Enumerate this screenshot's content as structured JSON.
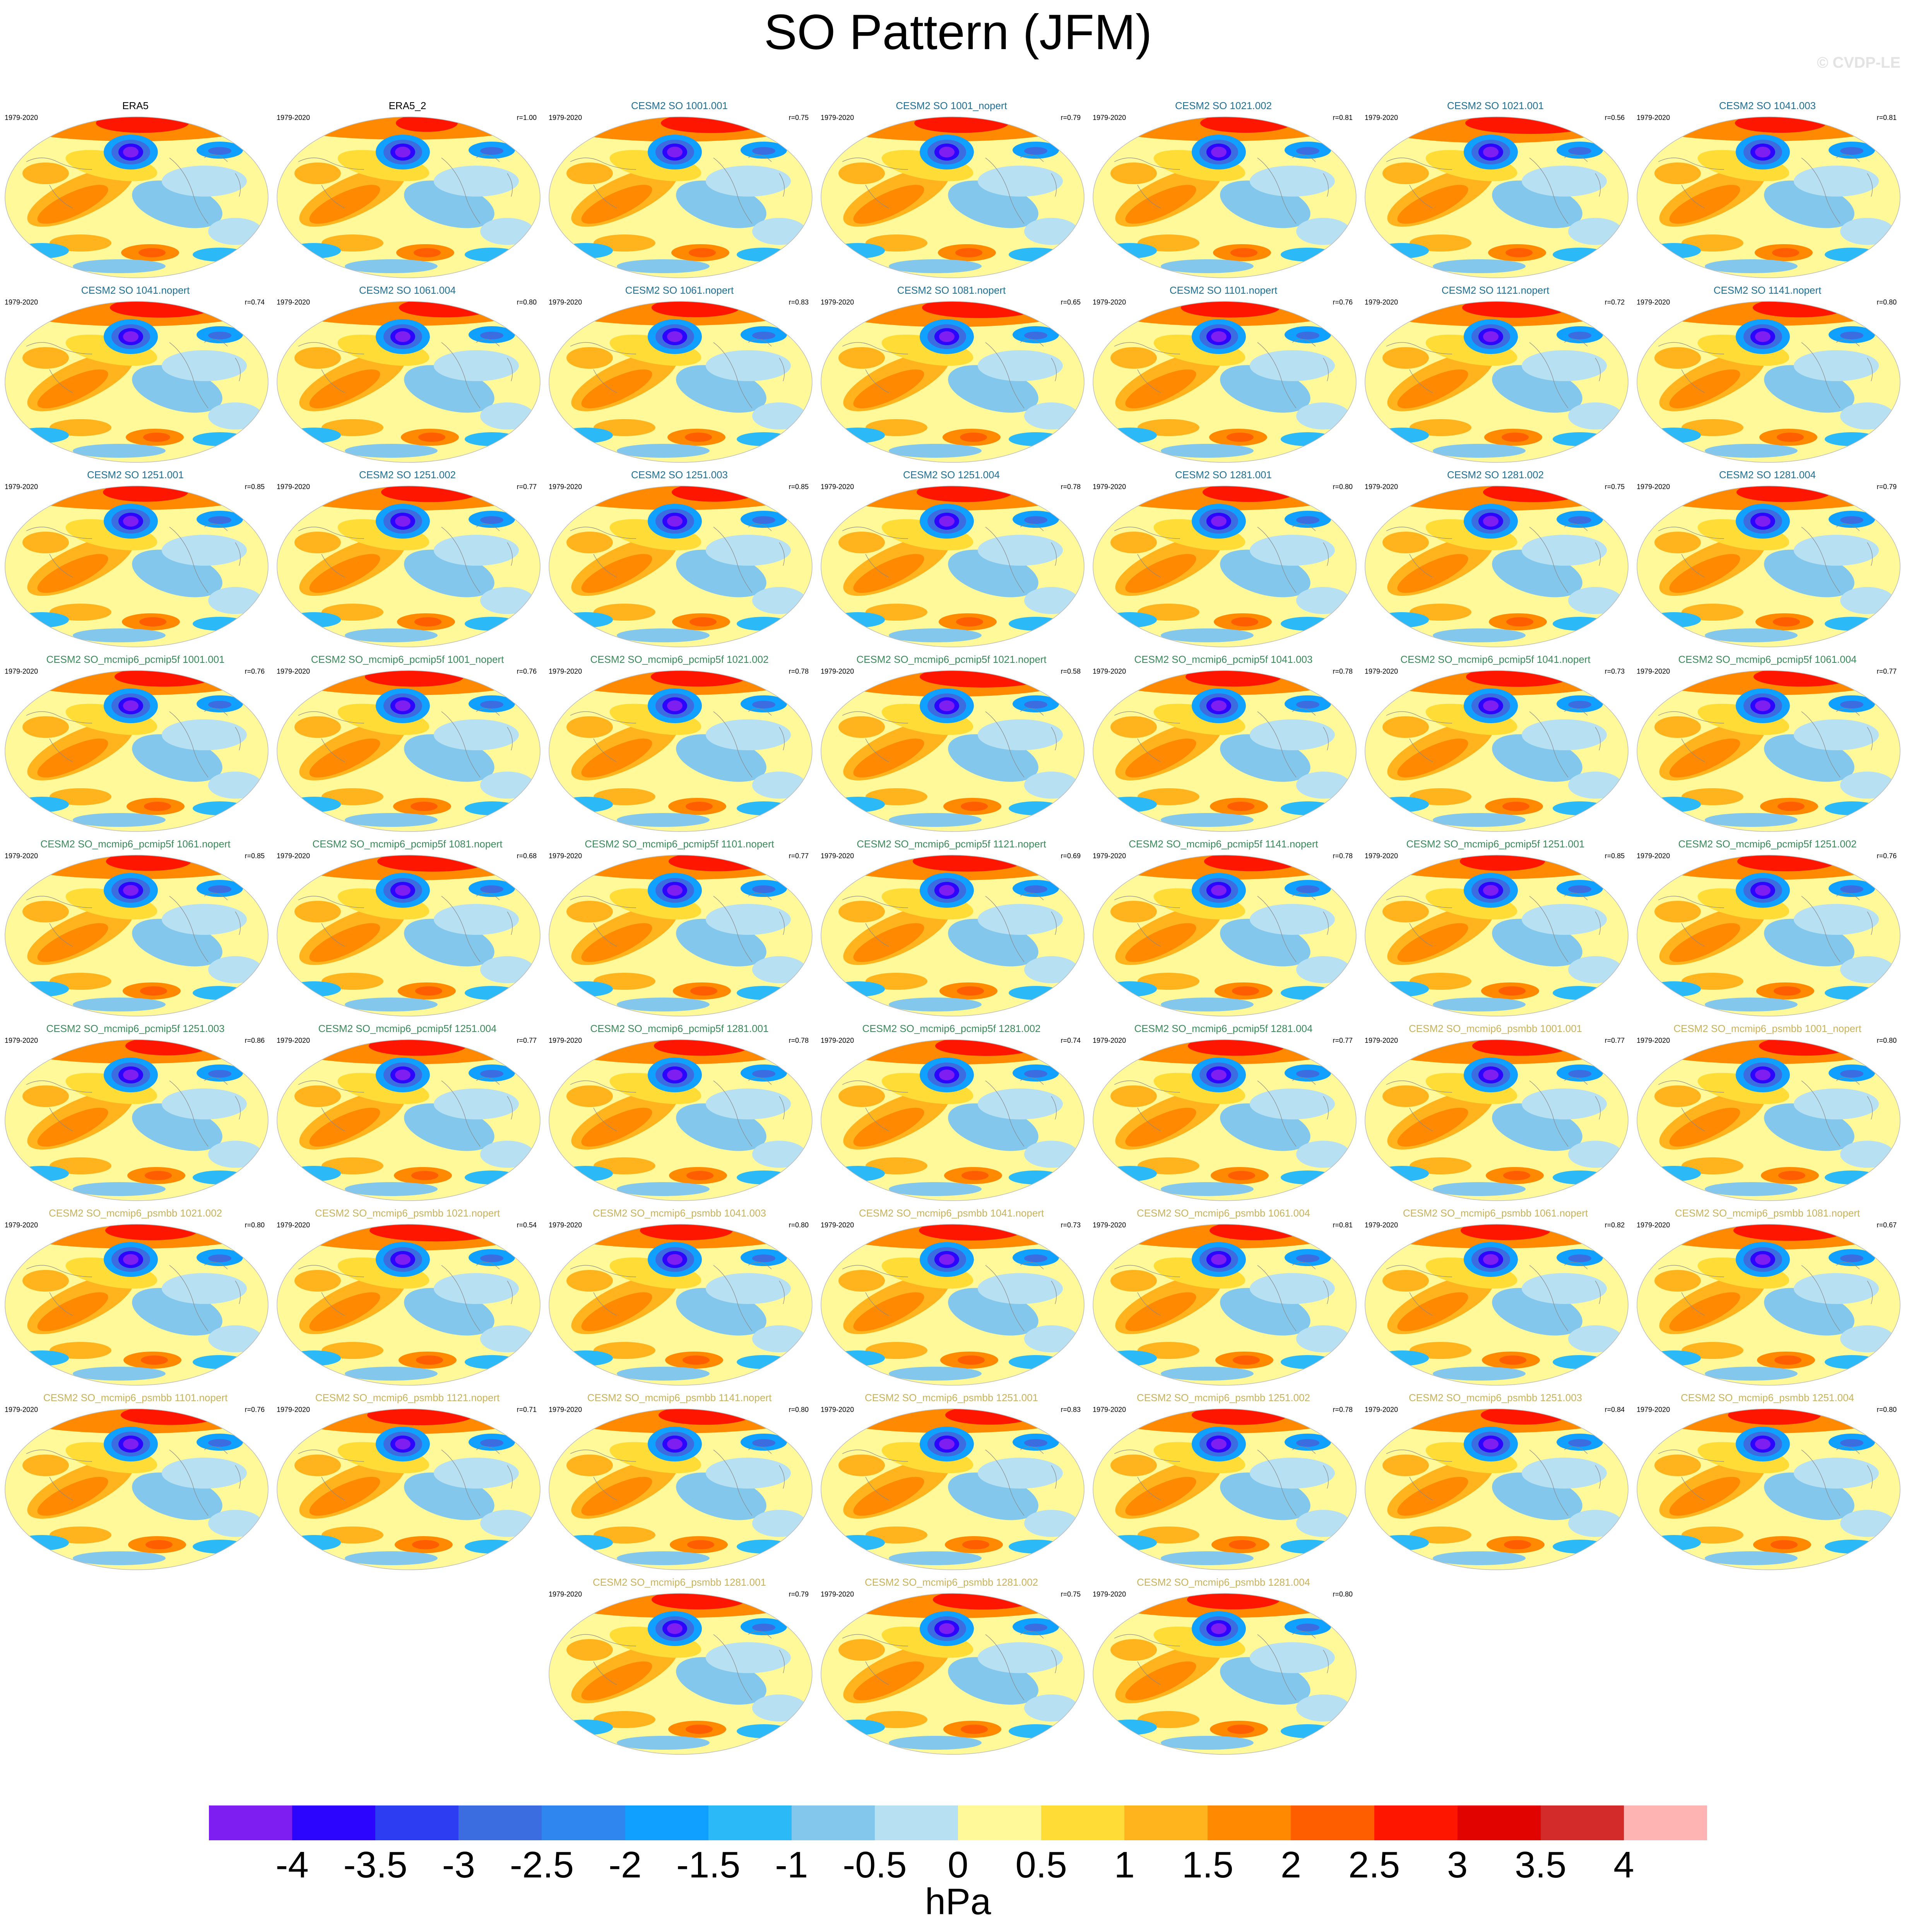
{
  "title": "SO Pattern (JFM)",
  "copyright": "© CVDP-LE",
  "colors": {
    "obs_title": "#000000",
    "cesm2_title": "#1f6f96",
    "pcmip5f_title": "#3a8a5a",
    "psmbb_title": "#c9b25a"
  },
  "chart_data": {
    "type": "heatmap",
    "projection": "Robinson global maps",
    "variable": "sea level pressure regression pattern",
    "units": "hPa",
    "colorbar": {
      "labels": [
        "-4",
        "-3.5",
        "-3",
        "-2.5",
        "-2",
        "-1.5",
        "-1",
        "-0.5",
        "0",
        "0.5",
        "1",
        "1.5",
        "2",
        "2.5",
        "3",
        "3.5",
        "4"
      ],
      "colors": [
        "#7f1ef0",
        "#2b05ff",
        "#2d3ef2",
        "#3c6de0",
        "#2f86ee",
        "#10a0ff",
        "#2bbaf7",
        "#83c8ec",
        "#b7e0f2",
        "#fff99a",
        "#ffdc36",
        "#ffb41e",
        "#ff8a02",
        "#ff5e00",
        "#ff1600",
        "#e00300",
        "#d32a2a",
        "#ffb4b4"
      ]
    },
    "panels": [
      {
        "title": "ERA5",
        "years": "1979-2020",
        "r": "",
        "group": "obs"
      },
      {
        "title": "ERA5_2",
        "years": "1979-2020",
        "r": "r=1.00",
        "group": "obs"
      },
      {
        "title": "CESM2 SO 1001.001",
        "years": "1979-2020",
        "r": "r=0.75",
        "group": "cesm2"
      },
      {
        "title": "CESM2 SO 1001_nopert",
        "years": "1979-2020",
        "r": "r=0.79",
        "group": "cesm2"
      },
      {
        "title": "CESM2 SO 1021.002",
        "years": "1979-2020",
        "r": "r=0.81",
        "group": "cesm2"
      },
      {
        "title": "CESM2 SO 1021.001",
        "years": "1979-2020",
        "r": "r=0.56",
        "group": "cesm2"
      },
      {
        "title": "CESM2 SO 1041.003",
        "years": "1979-2020",
        "r": "r=0.81",
        "group": "cesm2"
      },
      {
        "title": "CESM2 SO 1041.nopert",
        "years": "1979-2020",
        "r": "r=0.74",
        "group": "cesm2"
      },
      {
        "title": "CESM2 SO 1061.004",
        "years": "1979-2020",
        "r": "r=0.80",
        "group": "cesm2"
      },
      {
        "title": "CESM2 SO 1061.nopert",
        "years": "1979-2020",
        "r": "r=0.83",
        "group": "cesm2"
      },
      {
        "title": "CESM2 SO 1081.nopert",
        "years": "1979-2020",
        "r": "r=0.65",
        "group": "cesm2"
      },
      {
        "title": "CESM2 SO 1101.nopert",
        "years": "1979-2020",
        "r": "r=0.76",
        "group": "cesm2"
      },
      {
        "title": "CESM2 SO 1121.nopert",
        "years": "1979-2020",
        "r": "r=0.72",
        "group": "cesm2"
      },
      {
        "title": "CESM2 SO 1141.nopert",
        "years": "1979-2020",
        "r": "r=0.80",
        "group": "cesm2"
      },
      {
        "title": "CESM2 SO 1251.001",
        "years": "1979-2020",
        "r": "r=0.85",
        "group": "cesm2"
      },
      {
        "title": "CESM2 SO 1251.002",
        "years": "1979-2020",
        "r": "r=0.77",
        "group": "cesm2"
      },
      {
        "title": "CESM2 SO 1251.003",
        "years": "1979-2020",
        "r": "r=0.85",
        "group": "cesm2"
      },
      {
        "title": "CESM2 SO 1251.004",
        "years": "1979-2020",
        "r": "r=0.78",
        "group": "cesm2"
      },
      {
        "title": "CESM2 SO 1281.001",
        "years": "1979-2020",
        "r": "r=0.80",
        "group": "cesm2"
      },
      {
        "title": "CESM2 SO 1281.002",
        "years": "1979-2020",
        "r": "r=0.75",
        "group": "cesm2"
      },
      {
        "title": "CESM2 SO 1281.004",
        "years": "1979-2020",
        "r": "r=0.79",
        "group": "cesm2"
      },
      {
        "title": "CESM2 SO_mcmip6_pcmip5f 1001.001",
        "years": "1979-2020",
        "r": "r=0.76",
        "group": "pcmip5f"
      },
      {
        "title": "CESM2 SO_mcmip6_pcmip5f 1001_nopert",
        "years": "1979-2020",
        "r": "r=0.76",
        "group": "pcmip5f"
      },
      {
        "title": "CESM2 SO_mcmip6_pcmip5f 1021.002",
        "years": "1979-2020",
        "r": "r=0.78",
        "group": "pcmip5f"
      },
      {
        "title": "CESM2 SO_mcmip6_pcmip5f 1021.nopert",
        "years": "1979-2020",
        "r": "r=0.58",
        "group": "pcmip5f"
      },
      {
        "title": "CESM2 SO_mcmip6_pcmip5f 1041.003",
        "years": "1979-2020",
        "r": "r=0.78",
        "group": "pcmip5f"
      },
      {
        "title": "CESM2 SO_mcmip6_pcmip5f 1041.nopert",
        "years": "1979-2020",
        "r": "r=0.73",
        "group": "pcmip5f"
      },
      {
        "title": "CESM2 SO_mcmip6_pcmip5f 1061.004",
        "years": "1979-2020",
        "r": "r=0.77",
        "group": "pcmip5f"
      },
      {
        "title": "CESM2 SO_mcmip6_pcmip5f 1061.nopert",
        "years": "1979-2020",
        "r": "r=0.85",
        "group": "pcmip5f"
      },
      {
        "title": "CESM2 SO_mcmip6_pcmip5f 1081.nopert",
        "years": "1979-2020",
        "r": "r=0.68",
        "group": "pcmip5f"
      },
      {
        "title": "CESM2 SO_mcmip6_pcmip5f 1101.nopert",
        "years": "1979-2020",
        "r": "r=0.77",
        "group": "pcmip5f"
      },
      {
        "title": "CESM2 SO_mcmip6_pcmip5f 1121.nopert",
        "years": "1979-2020",
        "r": "r=0.69",
        "group": "pcmip5f"
      },
      {
        "title": "CESM2 SO_mcmip6_pcmip5f 1141.nopert",
        "years": "1979-2020",
        "r": "r=0.78",
        "group": "pcmip5f"
      },
      {
        "title": "CESM2 SO_mcmip6_pcmip5f 1251.001",
        "years": "1979-2020",
        "r": "r=0.85",
        "group": "pcmip5f"
      },
      {
        "title": "CESM2 SO_mcmip6_pcmip5f 1251.002",
        "years": "1979-2020",
        "r": "r=0.76",
        "group": "pcmip5f"
      },
      {
        "title": "CESM2 SO_mcmip6_pcmip5f 1251.003",
        "years": "1979-2020",
        "r": "r=0.86",
        "group": "pcmip5f"
      },
      {
        "title": "CESM2 SO_mcmip6_pcmip5f 1251.004",
        "years": "1979-2020",
        "r": "r=0.77",
        "group": "pcmip5f"
      },
      {
        "title": "CESM2 SO_mcmip6_pcmip5f 1281.001",
        "years": "1979-2020",
        "r": "r=0.78",
        "group": "pcmip5f"
      },
      {
        "title": "CESM2 SO_mcmip6_pcmip5f 1281.002",
        "years": "1979-2020",
        "r": "r=0.74",
        "group": "pcmip5f"
      },
      {
        "title": "CESM2 SO_mcmip6_pcmip5f 1281.004",
        "years": "1979-2020",
        "r": "r=0.77",
        "group": "pcmip5f"
      },
      {
        "title": "CESM2 SO_mcmip6_psmbb 1001.001",
        "years": "1979-2020",
        "r": "r=0.77",
        "group": "psmbb"
      },
      {
        "title": "CESM2 SO_mcmip6_psmbb 1001_nopert",
        "years": "1979-2020",
        "r": "r=0.80",
        "group": "psmbb"
      },
      {
        "title": "CESM2 SO_mcmip6_psmbb 1021.002",
        "years": "1979-2020",
        "r": "r=0.80",
        "group": "psmbb"
      },
      {
        "title": "CESM2 SO_mcmip6_psmbb 1021.nopert",
        "years": "1979-2020",
        "r": "r=0.54",
        "group": "psmbb"
      },
      {
        "title": "CESM2 SO_mcmip6_psmbb 1041.003",
        "years": "1979-2020",
        "r": "r=0.80",
        "group": "psmbb"
      },
      {
        "title": "CESM2 SO_mcmip6_psmbb 1041.nopert",
        "years": "1979-2020",
        "r": "r=0.73",
        "group": "psmbb"
      },
      {
        "title": "CESM2 SO_mcmip6_psmbb 1061.004",
        "years": "1979-2020",
        "r": "r=0.81",
        "group": "psmbb"
      },
      {
        "title": "CESM2 SO_mcmip6_psmbb 1061.nopert",
        "years": "1979-2020",
        "r": "r=0.82",
        "group": "psmbb"
      },
      {
        "title": "CESM2 SO_mcmip6_psmbb 1081.nopert",
        "years": "1979-2020",
        "r": "r=0.67",
        "group": "psmbb"
      },
      {
        "title": "CESM2 SO_mcmip6_psmbb 1101.nopert",
        "years": "1979-2020",
        "r": "r=0.76",
        "group": "psmbb"
      },
      {
        "title": "CESM2 SO_mcmip6_psmbb 1121.nopert",
        "years": "1979-2020",
        "r": "r=0.71",
        "group": "psmbb"
      },
      {
        "title": "CESM2 SO_mcmip6_psmbb 1141.nopert",
        "years": "1979-2020",
        "r": "r=0.80",
        "group": "psmbb"
      },
      {
        "title": "CESM2 SO_mcmip6_psmbb 1251.001",
        "years": "1979-2020",
        "r": "r=0.83",
        "group": "psmbb"
      },
      {
        "title": "CESM2 SO_mcmip6_psmbb 1251.002",
        "years": "1979-2020",
        "r": "r=0.78",
        "group": "psmbb"
      },
      {
        "title": "CESM2 SO_mcmip6_psmbb 1251.003",
        "years": "1979-2020",
        "r": "r=0.84",
        "group": "psmbb"
      },
      {
        "title": "CESM2 SO_mcmip6_psmbb 1251.004",
        "years": "1979-2020",
        "r": "r=0.80",
        "group": "psmbb"
      },
      {
        "title": "CESM2 SO_mcmip6_psmbb 1281.001",
        "years": "1979-2020",
        "r": "r=0.79",
        "group": "psmbb"
      },
      {
        "title": "CESM2 SO_mcmip6_psmbb 1281.002",
        "years": "1979-2020",
        "r": "r=0.75",
        "group": "psmbb"
      },
      {
        "title": "CESM2 SO_mcmip6_psmbb 1281.004",
        "years": "1979-2020",
        "r": "r=0.80",
        "group": "psmbb"
      }
    ]
  }
}
